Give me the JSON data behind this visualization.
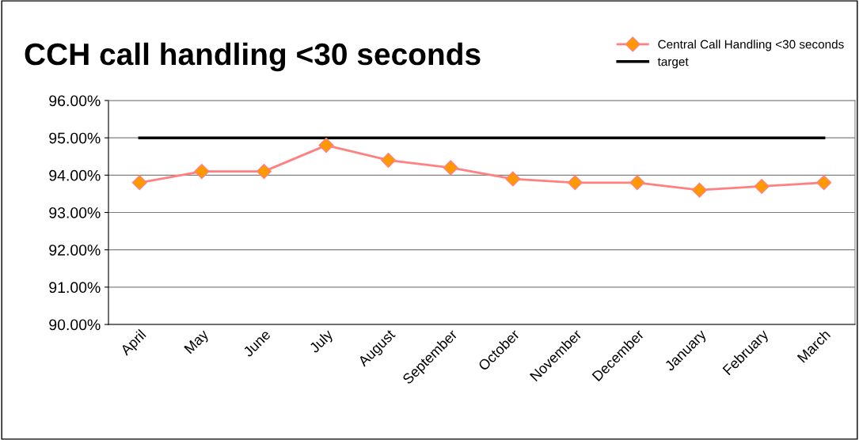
{
  "chart_data": {
    "type": "line",
    "title": "CCH call handling <30 seconds",
    "categories": [
      "April",
      "May",
      "June",
      "July",
      "August",
      "September",
      "October",
      "November",
      "December",
      "January",
      "February",
      "March"
    ],
    "series": [
      {
        "name": "Central Call Handling <30 seconds",
        "color": "#ff8080",
        "marker": "diamond",
        "values": [
          93.8,
          94.1,
          94.1,
          94.8,
          94.4,
          94.2,
          93.9,
          93.8,
          93.8,
          93.6,
          93.7,
          93.8
        ]
      },
      {
        "name": "target",
        "color": "#000000",
        "marker": "none",
        "values": [
          95,
          95,
          95,
          95,
          95,
          95,
          95,
          95,
          95,
          95,
          95,
          95
        ]
      }
    ],
    "ylim": [
      90,
      96
    ],
    "yticks": [
      {
        "value": 90,
        "label": "90.00%"
      },
      {
        "value": 91,
        "label": "91.00%"
      },
      {
        "value": 92,
        "label": "92.00%"
      },
      {
        "value": 93,
        "label": "93.00%"
      },
      {
        "value": 94,
        "label": "94.00%"
      },
      {
        "value": 95,
        "label": "95.00%"
      },
      {
        "value": 96,
        "label": "96.00%"
      }
    ],
    "grid": "y",
    "legend": "top right"
  }
}
